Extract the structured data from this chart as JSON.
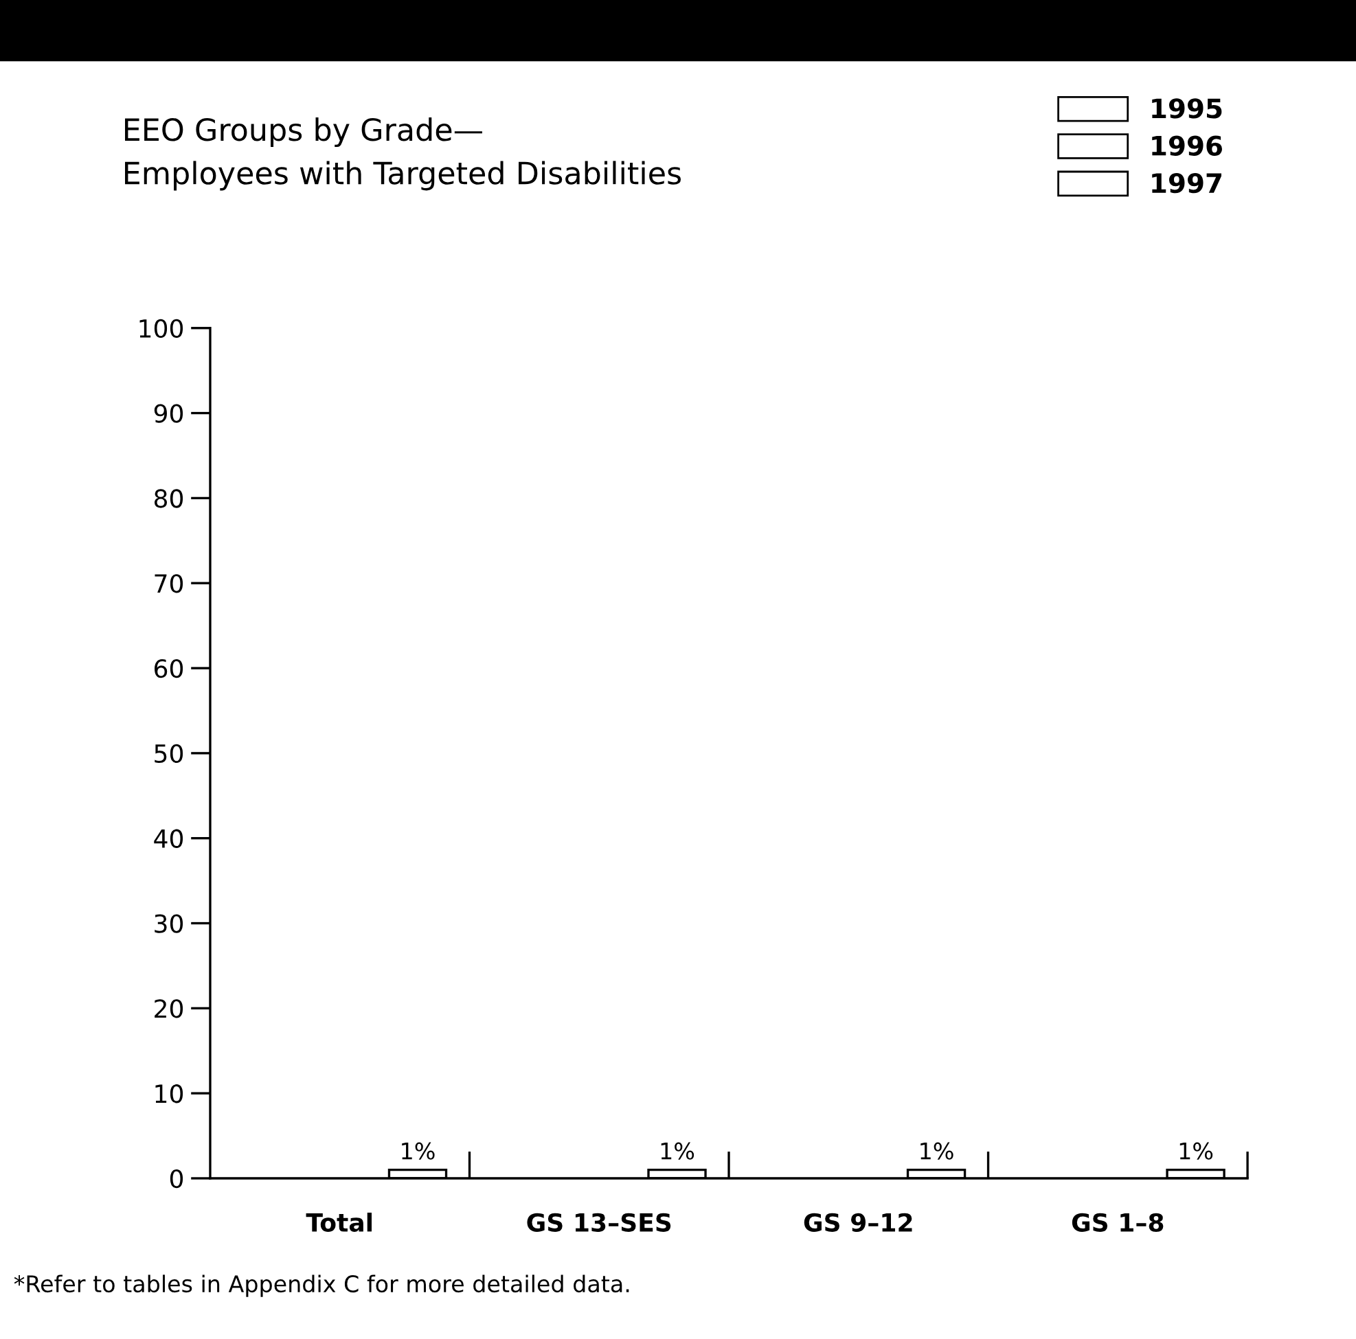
{
  "chart_data": {
    "type": "bar",
    "title": "EEO Groups by Grade—\nEmployees with Targeted Disabilities",
    "categories": [
      "Total",
      "GS 13–SES",
      "GS 9–12",
      "GS 1–8"
    ],
    "series": [
      {
        "name": "1995",
        "color": "#ffffff",
        "values": [
          null,
          null,
          null,
          null
        ]
      },
      {
        "name": "1996",
        "color": "#ffffff",
        "values": [
          null,
          null,
          null,
          null
        ]
      },
      {
        "name": "1997",
        "color": "#ffffff",
        "values": [
          1,
          1,
          1,
          1
        ],
        "value_labels": [
          "1%",
          "1%",
          "1%",
          "1%"
        ]
      }
    ],
    "ylim": [
      0,
      100
    ],
    "yticks": [
      0,
      10,
      20,
      30,
      40,
      50,
      60,
      70,
      80,
      90,
      100
    ],
    "grid": false,
    "legend": "top right",
    "annotations": [
      "*Refer to tables in Appendix C for more detailed data."
    ]
  }
}
